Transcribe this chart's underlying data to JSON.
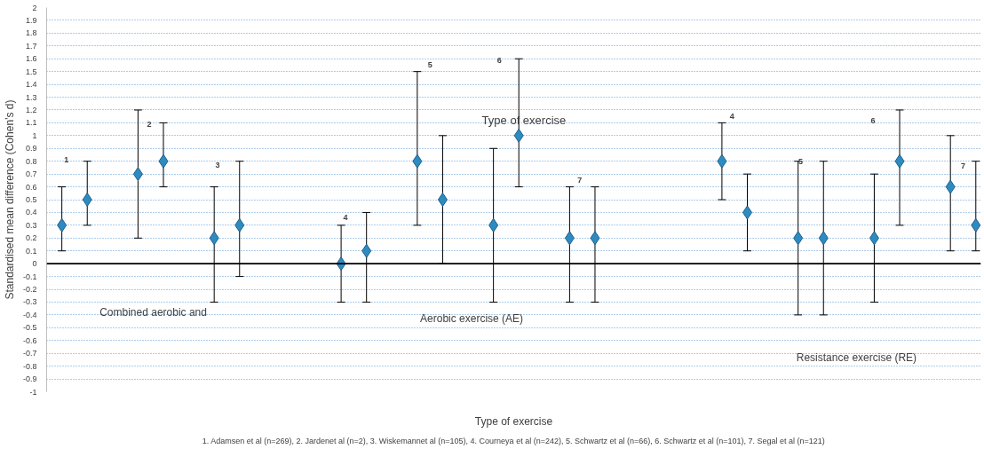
{
  "chart_data": {
    "type": "scatter",
    "xlabel": "Type of exercise",
    "ylabel": "Standardised mean difference (Cohen’s d)",
    "categories": [
      null,
      null,
      null,
      null,
      null,
      null,
      null,
      null,
      null,
      null,
      null,
      null,
      null,
      null,
      null,
      null,
      null,
      null,
      null,
      null,
      null,
      null,
      null,
      null,
      null,
      null,
      null,
      null,
      null,
      null,
      null,
      null,
      null,
      null,
      null,
      null,
      null
    ],
    "series": [
      {
        "color": "#2e8bc0",
        "values": [
          0.3,
          0.5,
          null,
          0.7,
          0.8,
          null,
          0.2,
          0.3,
          null,
          null,
          null,
          0.0,
          0.1,
          null,
          0.8,
          0.5,
          null,
          0.3,
          1.0,
          null,
          0.2,
          0.2,
          null,
          null,
          null,
          null,
          0.8,
          0.4,
          null,
          0.2,
          0.2,
          null,
          0.2,
          0.8,
          null,
          0.6,
          0.3
        ],
        "errors": [
          [
            0.1,
            0.6
          ],
          [
            0.3,
            0.8
          ],
          null,
          [
            0.2,
            1.2
          ],
          [
            0.6,
            1.1
          ],
          null,
          [
            -0.3,
            0.6
          ],
          [
            -0.1,
            0.8
          ],
          null,
          null,
          null,
          [
            -0.3,
            0.3
          ],
          [
            -0.3,
            0.4
          ],
          null,
          [
            0.3,
            1.5
          ],
          [
            0.0,
            1.0
          ],
          null,
          [
            -0.3,
            0.9
          ],
          [
            0.6,
            1.6
          ],
          null,
          [
            -0.3,
            0.6
          ],
          [
            -0.3,
            0.6
          ],
          null,
          null,
          null,
          null,
          [
            0.5,
            1.1
          ],
          [
            0.1,
            0.7
          ],
          null,
          [
            -0.4,
            0.8
          ],
          [
            -0.4,
            0.8
          ],
          null,
          [
            -0.3,
            0.7
          ],
          [
            0.3,
            1.2
          ],
          null,
          [
            0.1,
            1.0
          ],
          [
            0.1,
            0.8
          ]
        ]
      }
    ],
    "marker": "diamond",
    "ylim": [
      -1,
      2
    ],
    "yticks": [
      -1,
      -0.9,
      -0.8,
      -0.7,
      -0.6,
      -0.5,
      -0.4,
      -0.3,
      -0.2,
      -0.1,
      0,
      0.1,
      0.2,
      0.3,
      0.4,
      0.5,
      0.6,
      0.7,
      0.8,
      0.9,
      1,
      1.1,
      1.2,
      1.3,
      1.4,
      1.5,
      1.6,
      1.7,
      1.8,
      1.9,
      2
    ],
    "tick_labels": "y",
    "grid": "y",
    "ref_lines": [
      {
        "axis": "y",
        "value": 0,
        "color": "#000000"
      }
    ],
    "annotations": [
      "Type of exercise",
      "Combined aerobic and",
      "Aerobic exercise  (AE)",
      "Resistance exercise (RE)",
      "1",
      "2",
      "3",
      "4",
      "5",
      "6",
      "7",
      "4",
      "5",
      "6",
      "7",
      "1. Adamsen et al (n=269), 2. Jardenet al (n=2), 3. Wiskemannet al (n=105), 4. Courneya et al (n=242), 5. Schwartz et al (n=66), 6. Schwartz et al (n=101), 7. Segal et al (n=121)"
    ]
  }
}
